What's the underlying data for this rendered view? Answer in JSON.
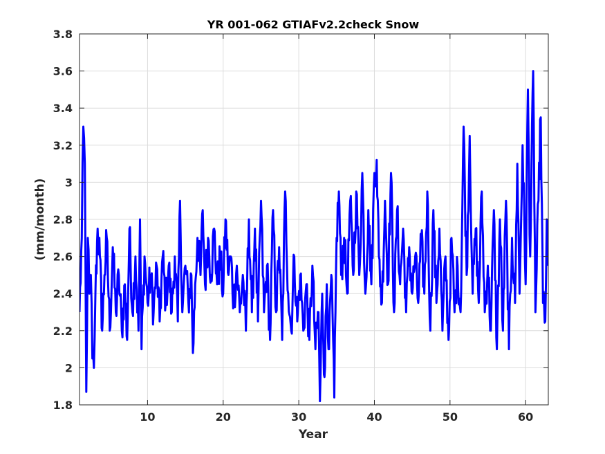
{
  "chart_data": {
    "type": "line",
    "title": "YR 001-062 GTIAFv2.2check Snow",
    "xlabel": "Year",
    "ylabel": "(mm/month)",
    "xlim": [
      1,
      63
    ],
    "ylim": [
      1.8,
      3.8
    ],
    "xticks": [
      10,
      20,
      30,
      40,
      50,
      60
    ],
    "yticks": [
      1.8,
      2.0,
      2.2,
      2.4,
      2.6,
      2.8,
      3.0,
      3.2,
      3.4,
      3.6,
      3.8
    ],
    "ytick_labels": [
      "1.8",
      "2",
      "2.2",
      "2.4",
      "2.6",
      "2.8",
      "3",
      "3.2",
      "3.4",
      "3.6",
      "3.8"
    ],
    "grid": true,
    "line_color": "#0000ff",
    "series": [
      {
        "x_start": 1,
        "x_step": 0.08333333,
        "anchors_note_free": true,
        "keypoints": [
          [
            1.0,
            2.3
          ],
          [
            1.3,
            2.7
          ],
          [
            1.5,
            3.3
          ],
          [
            1.7,
            3.1
          ],
          [
            1.9,
            1.87
          ],
          [
            2.1,
            2.7
          ],
          [
            2.3,
            2.4
          ],
          [
            2.5,
            2.5
          ],
          [
            2.7,
            2.05
          ],
          [
            2.9,
            2.0
          ],
          [
            3.1,
            2.4
          ],
          [
            3.4,
            2.75
          ],
          [
            3.7,
            2.6
          ],
          [
            4.0,
            2.2
          ],
          [
            4.3,
            2.5
          ],
          [
            4.6,
            2.7
          ],
          [
            5.0,
            2.2
          ],
          [
            5.4,
            2.65
          ],
          [
            5.8,
            2.3
          ],
          [
            6.2,
            2.5
          ],
          [
            6.6,
            2.2
          ],
          [
            7.0,
            2.45
          ],
          [
            7.3,
            2.15
          ],
          [
            7.6,
            2.75
          ],
          [
            8.0,
            2.3
          ],
          [
            8.4,
            2.6
          ],
          [
            8.8,
            2.2
          ],
          [
            9.0,
            2.8
          ],
          [
            9.2,
            2.1
          ],
          [
            9.6,
            2.6
          ],
          [
            10.0,
            2.35
          ],
          [
            10.4,
            2.5
          ],
          [
            10.8,
            2.3
          ],
          [
            11.2,
            2.55
          ],
          [
            11.6,
            2.25
          ],
          [
            12.0,
            2.6
          ],
          [
            12.4,
            2.35
          ],
          [
            12.8,
            2.55
          ],
          [
            13.2,
            2.3
          ],
          [
            13.6,
            2.6
          ],
          [
            14.0,
            2.25
          ],
          [
            14.3,
            2.9
          ],
          [
            14.6,
            2.3
          ],
          [
            15.0,
            2.55
          ],
          [
            15.4,
            2.35
          ],
          [
            15.8,
            2.5
          ],
          [
            16.0,
            2.08
          ],
          [
            16.3,
            2.45
          ],
          [
            16.6,
            2.7
          ],
          [
            17.0,
            2.5
          ],
          [
            17.3,
            2.85
          ],
          [
            17.6,
            2.45
          ],
          [
            18.0,
            2.7
          ],
          [
            18.4,
            2.5
          ],
          [
            18.8,
            2.75
          ],
          [
            19.2,
            2.45
          ],
          [
            19.6,
            2.6
          ],
          [
            20.0,
            2.4
          ],
          [
            20.3,
            2.8
          ],
          [
            20.7,
            2.5
          ],
          [
            21.0,
            2.6
          ],
          [
            21.4,
            2.35
          ],
          [
            21.8,
            2.55
          ],
          [
            22.2,
            2.3
          ],
          [
            22.6,
            2.5
          ],
          [
            23.0,
            2.2
          ],
          [
            23.4,
            2.8
          ],
          [
            23.8,
            2.3
          ],
          [
            24.2,
            2.75
          ],
          [
            24.6,
            2.25
          ],
          [
            25.0,
            2.9
          ],
          [
            25.4,
            2.3
          ],
          [
            25.8,
            2.55
          ],
          [
            26.2,
            2.15
          ],
          [
            26.6,
            2.85
          ],
          [
            27.0,
            2.3
          ],
          [
            27.4,
            2.65
          ],
          [
            27.8,
            2.15
          ],
          [
            28.2,
            2.95
          ],
          [
            28.6,
            2.4
          ],
          [
            29.0,
            2.2
          ],
          [
            29.4,
            2.6
          ],
          [
            29.8,
            2.25
          ],
          [
            30.2,
            2.5
          ],
          [
            30.6,
            2.2
          ],
          [
            31.0,
            2.45
          ],
          [
            31.4,
            2.15
          ],
          [
            31.8,
            2.55
          ],
          [
            32.2,
            2.1
          ],
          [
            32.6,
            2.3
          ],
          [
            32.8,
            1.82
          ],
          [
            33.1,
            2.4
          ],
          [
            33.4,
            1.95
          ],
          [
            33.7,
            2.45
          ],
          [
            34.0,
            2.1
          ],
          [
            34.3,
            2.5
          ],
          [
            34.7,
            1.84
          ],
          [
            35.0,
            2.7
          ],
          [
            35.3,
            2.95
          ],
          [
            35.6,
            2.5
          ],
          [
            36.0,
            2.7
          ],
          [
            36.4,
            2.4
          ],
          [
            36.8,
            2.9
          ],
          [
            37.2,
            2.5
          ],
          [
            37.6,
            2.95
          ],
          [
            38.0,
            2.5
          ],
          [
            38.4,
            3.05
          ],
          [
            38.8,
            2.4
          ],
          [
            39.2,
            2.85
          ],
          [
            39.6,
            2.45
          ],
          [
            40.0,
            3.05
          ],
          [
            40.3,
            3.12
          ],
          [
            40.6,
            2.6
          ],
          [
            41.0,
            2.35
          ],
          [
            41.4,
            2.9
          ],
          [
            41.8,
            2.45
          ],
          [
            42.2,
            3.05
          ],
          [
            42.6,
            2.3
          ],
          [
            43.0,
            2.85
          ],
          [
            43.4,
            2.45
          ],
          [
            43.8,
            2.75
          ],
          [
            44.2,
            2.3
          ],
          [
            44.6,
            2.65
          ],
          [
            45.0,
            2.4
          ],
          [
            45.4,
            2.6
          ],
          [
            45.8,
            2.35
          ],
          [
            46.2,
            2.7
          ],
          [
            46.6,
            2.4
          ],
          [
            47.0,
            2.95
          ],
          [
            47.4,
            2.2
          ],
          [
            47.8,
            2.85
          ],
          [
            48.2,
            2.35
          ],
          [
            48.6,
            2.75
          ],
          [
            49.0,
            2.2
          ],
          [
            49.4,
            2.6
          ],
          [
            49.8,
            2.15
          ],
          [
            50.2,
            2.7
          ],
          [
            50.6,
            2.3
          ],
          [
            51.0,
            2.55
          ],
          [
            51.4,
            2.3
          ],
          [
            51.8,
            3.3
          ],
          [
            52.2,
            2.5
          ],
          [
            52.6,
            3.25
          ],
          [
            53.0,
            2.4
          ],
          [
            53.4,
            2.75
          ],
          [
            53.8,
            2.35
          ],
          [
            54.2,
            2.95
          ],
          [
            54.6,
            2.3
          ],
          [
            55.0,
            2.55
          ],
          [
            55.4,
            2.2
          ],
          [
            55.8,
            2.85
          ],
          [
            56.2,
            2.1
          ],
          [
            56.6,
            2.8
          ],
          [
            57.0,
            2.2
          ],
          [
            57.4,
            2.9
          ],
          [
            57.8,
            2.1
          ],
          [
            58.2,
            2.7
          ],
          [
            58.6,
            2.35
          ],
          [
            58.9,
            3.1
          ],
          [
            59.2,
            2.4
          ],
          [
            59.6,
            3.2
          ],
          [
            60.0,
            2.45
          ],
          [
            60.3,
            3.5
          ],
          [
            60.6,
            2.6
          ],
          [
            61.0,
            3.6
          ],
          [
            61.3,
            2.3
          ],
          [
            61.7,
            2.9
          ],
          [
            62.0,
            3.35
          ],
          [
            62.3,
            2.35
          ],
          [
            62.6,
            2.25
          ],
          [
            62.8,
            2.8
          ],
          [
            63.0,
            2.55
          ]
        ]
      }
    ]
  }
}
